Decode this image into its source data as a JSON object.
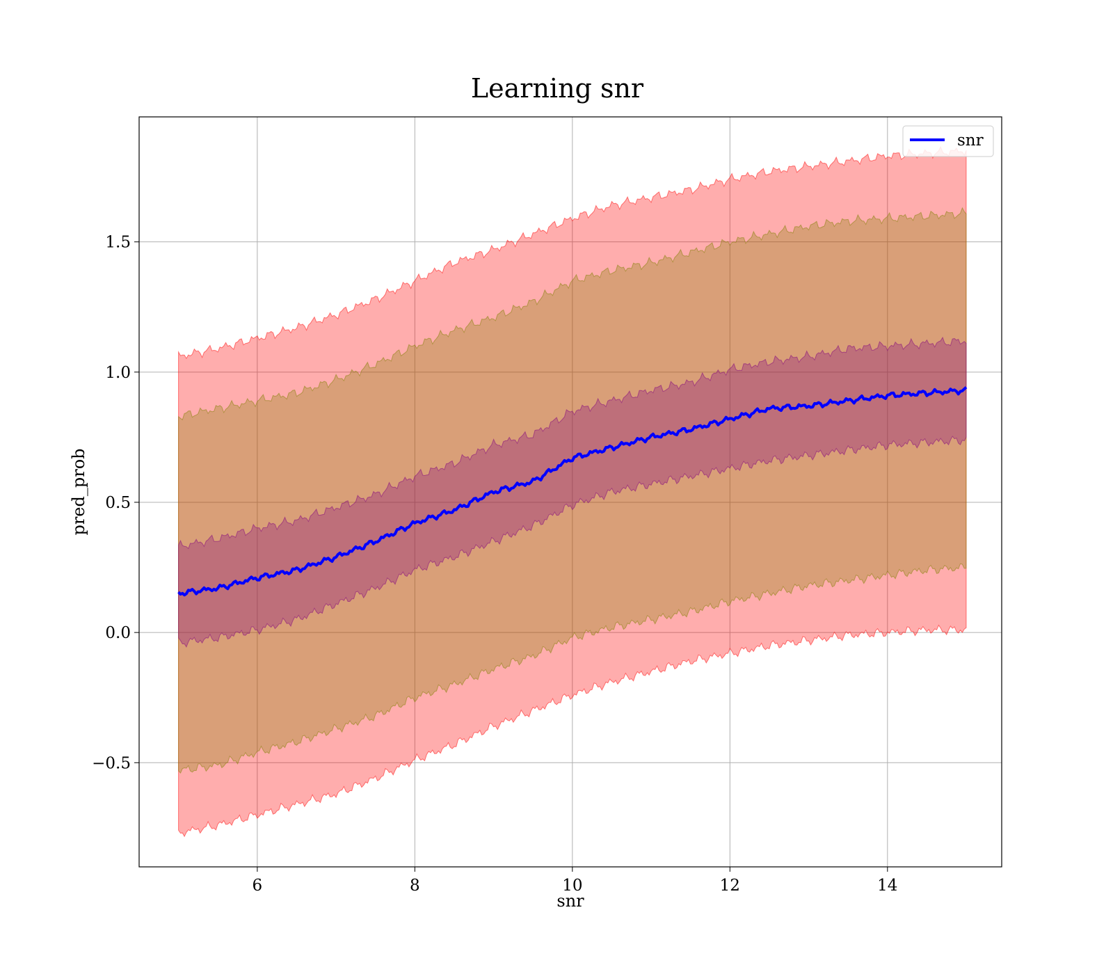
{
  "chart_data": {
    "type": "line",
    "title": "Learning snr",
    "xlabel": "snr",
    "ylabel": "pred_prob",
    "xlim": [
      4.5,
      15.45
    ],
    "ylim": [
      -0.9,
      1.98
    ],
    "grid": true,
    "legend": {
      "position": "top-right",
      "entries": [
        "snr"
      ]
    },
    "xticks": [
      6,
      8,
      10,
      12,
      14
    ],
    "yticks": [
      -0.5,
      0.0,
      0.5,
      1.0,
      1.5
    ],
    "xtick_labels": [
      "6",
      "8",
      "10",
      "12",
      "14"
    ],
    "ytick_labels": [
      "−0.5",
      "0.0",
      "0.5",
      "1.0",
      "1.5"
    ],
    "x": [
      5.0,
      5.5,
      6.0,
      6.5,
      7.0,
      7.5,
      8.0,
      8.5,
      9.0,
      9.5,
      10.0,
      10.5,
      11.0,
      11.5,
      12.0,
      12.5,
      13.0,
      13.5,
      14.0,
      14.5,
      15.0
    ],
    "series": [
      {
        "name": "snr",
        "color": "#0000ff",
        "values": [
          0.15,
          0.17,
          0.21,
          0.24,
          0.29,
          0.35,
          0.42,
          0.47,
          0.54,
          0.58,
          0.67,
          0.71,
          0.75,
          0.78,
          0.82,
          0.86,
          0.87,
          0.89,
          0.91,
          0.92,
          0.93
        ]
      }
    ],
    "bands": [
      {
        "color": "#ff0000",
        "opacity": 0.32,
        "lower": [
          -0.77,
          -0.74,
          -0.7,
          -0.66,
          -0.62,
          -0.56,
          -0.49,
          -0.43,
          -0.36,
          -0.3,
          -0.24,
          -0.19,
          -0.15,
          -0.11,
          -0.08,
          -0.05,
          -0.03,
          -0.01,
          0.0,
          0.01,
          0.01
        ],
        "upper": [
          1.06,
          1.09,
          1.13,
          1.17,
          1.22,
          1.28,
          1.35,
          1.42,
          1.47,
          1.53,
          1.59,
          1.64,
          1.67,
          1.7,
          1.74,
          1.77,
          1.79,
          1.81,
          1.83,
          1.84,
          1.85
        ]
      },
      {
        "color": "#808000",
        "opacity": 0.3,
        "lower": [
          -0.53,
          -0.51,
          -0.46,
          -0.42,
          -0.37,
          -0.32,
          -0.25,
          -0.2,
          -0.14,
          -0.09,
          -0.02,
          0.02,
          0.05,
          0.08,
          0.12,
          0.15,
          0.18,
          0.2,
          0.22,
          0.24,
          0.25
        ],
        "upper": [
          0.83,
          0.86,
          0.89,
          0.92,
          0.97,
          1.03,
          1.1,
          1.16,
          1.21,
          1.27,
          1.35,
          1.39,
          1.42,
          1.46,
          1.5,
          1.53,
          1.56,
          1.58,
          1.59,
          1.6,
          1.61
        ]
      },
      {
        "color": "#800080",
        "opacity": 0.3,
        "lower": [
          -0.04,
          -0.02,
          0.01,
          0.05,
          0.11,
          0.17,
          0.24,
          0.29,
          0.35,
          0.41,
          0.49,
          0.54,
          0.57,
          0.6,
          0.63,
          0.66,
          0.68,
          0.7,
          0.72,
          0.73,
          0.74
        ],
        "upper": [
          0.33,
          0.36,
          0.4,
          0.43,
          0.48,
          0.53,
          0.6,
          0.65,
          0.72,
          0.76,
          0.85,
          0.89,
          0.93,
          0.96,
          1.01,
          1.04,
          1.06,
          1.09,
          1.1,
          1.11,
          1.12
        ]
      }
    ]
  }
}
